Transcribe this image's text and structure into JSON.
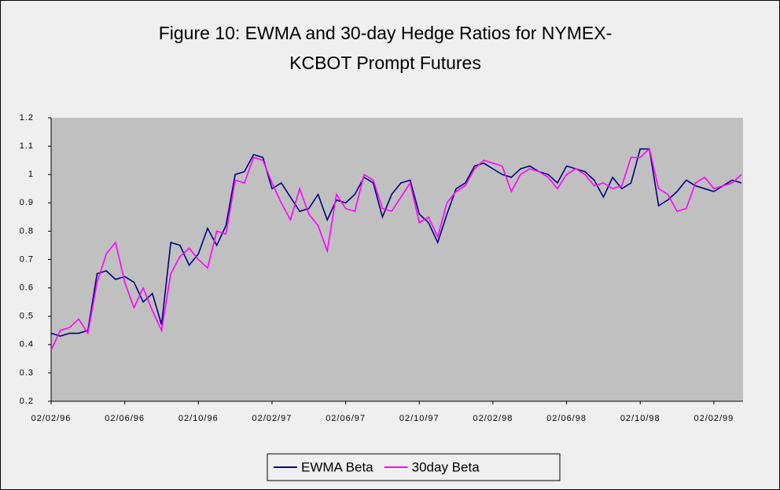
{
  "chart_data": {
    "type": "line",
    "title": [
      "Figure 10: EWMA and 30-day Hedge Ratios for NYMEX-",
      "KCBOT Prompt Futures"
    ],
    "categories": [
      "02/02/96",
      null,
      null,
      null,
      null,
      null,
      null,
      null,
      "02/06/96",
      null,
      null,
      null,
      null,
      null,
      null,
      null,
      "02/10/96",
      null,
      null,
      null,
      null,
      null,
      null,
      null,
      "02/02/97",
      null,
      null,
      null,
      null,
      null,
      null,
      null,
      "02/06/97",
      null,
      null,
      null,
      null,
      null,
      null,
      null,
      "02/10/97",
      null,
      null,
      null,
      null,
      null,
      null,
      null,
      "02/02/98",
      null,
      null,
      null,
      null,
      null,
      null,
      null,
      "02/06/98",
      null,
      null,
      null,
      null,
      null,
      null,
      null,
      "02/10/98",
      null,
      null,
      null,
      null,
      null,
      null,
      null,
      "02/02/99",
      null,
      null,
      null
    ],
    "series": [
      {
        "name": "EWMA Beta",
        "color": "#000080",
        "values": [
          0.44,
          0.43,
          0.44,
          0.44,
          0.45,
          0.65,
          0.66,
          0.63,
          0.64,
          0.62,
          0.55,
          0.58,
          0.47,
          0.76,
          0.75,
          0.68,
          0.72,
          0.81,
          0.75,
          0.82,
          1.0,
          1.01,
          1.07,
          1.06,
          0.95,
          0.97,
          0.92,
          0.87,
          0.88,
          0.93,
          0.84,
          0.91,
          0.9,
          0.93,
          0.99,
          0.97,
          0.85,
          0.93,
          0.97,
          0.98,
          0.86,
          0.83,
          0.76,
          0.86,
          0.95,
          0.97,
          1.03,
          1.04,
          1.02,
          1.0,
          0.99,
          1.02,
          1.03,
          1.01,
          1.0,
          0.97,
          1.03,
          1.02,
          1.01,
          0.98,
          0.92,
          0.99,
          0.95,
          0.97,
          1.09,
          1.09,
          0.89,
          0.91,
          0.94,
          0.98,
          0.96,
          0.95,
          0.94,
          0.96,
          0.98,
          0.97
        ]
      },
      {
        "name": "30day Beta",
        "color": "#ff00ff",
        "values": [
          0.38,
          0.45,
          0.46,
          0.49,
          0.44,
          0.62,
          0.72,
          0.76,
          0.62,
          0.53,
          0.6,
          0.52,
          0.45,
          0.65,
          0.71,
          0.74,
          0.7,
          0.67,
          0.8,
          0.79,
          0.98,
          0.97,
          1.06,
          1.05,
          0.97,
          0.9,
          0.84,
          0.95,
          0.86,
          0.82,
          0.73,
          0.93,
          0.88,
          0.87,
          1.0,
          0.98,
          0.88,
          0.87,
          0.92,
          0.97,
          0.83,
          0.85,
          0.78,
          0.9,
          0.94,
          0.96,
          1.02,
          1.05,
          1.04,
          1.03,
          0.94,
          1.0,
          1.02,
          1.01,
          0.99,
          0.95,
          1.0,
          1.02,
          1.0,
          0.96,
          0.97,
          0.95,
          0.96,
          1.06,
          1.06,
          1.09,
          0.95,
          0.93,
          0.87,
          0.88,
          0.97,
          0.99,
          0.95,
          0.96,
          0.97,
          1.0
        ]
      }
    ],
    "ylim": [
      0.2,
      1.2
    ],
    "yticks": [
      0.2,
      0.3,
      0.4,
      0.5,
      0.6,
      0.7,
      0.8,
      0.9,
      1,
      1.1,
      1.2
    ],
    "grid": false,
    "legend": "bottom"
  }
}
